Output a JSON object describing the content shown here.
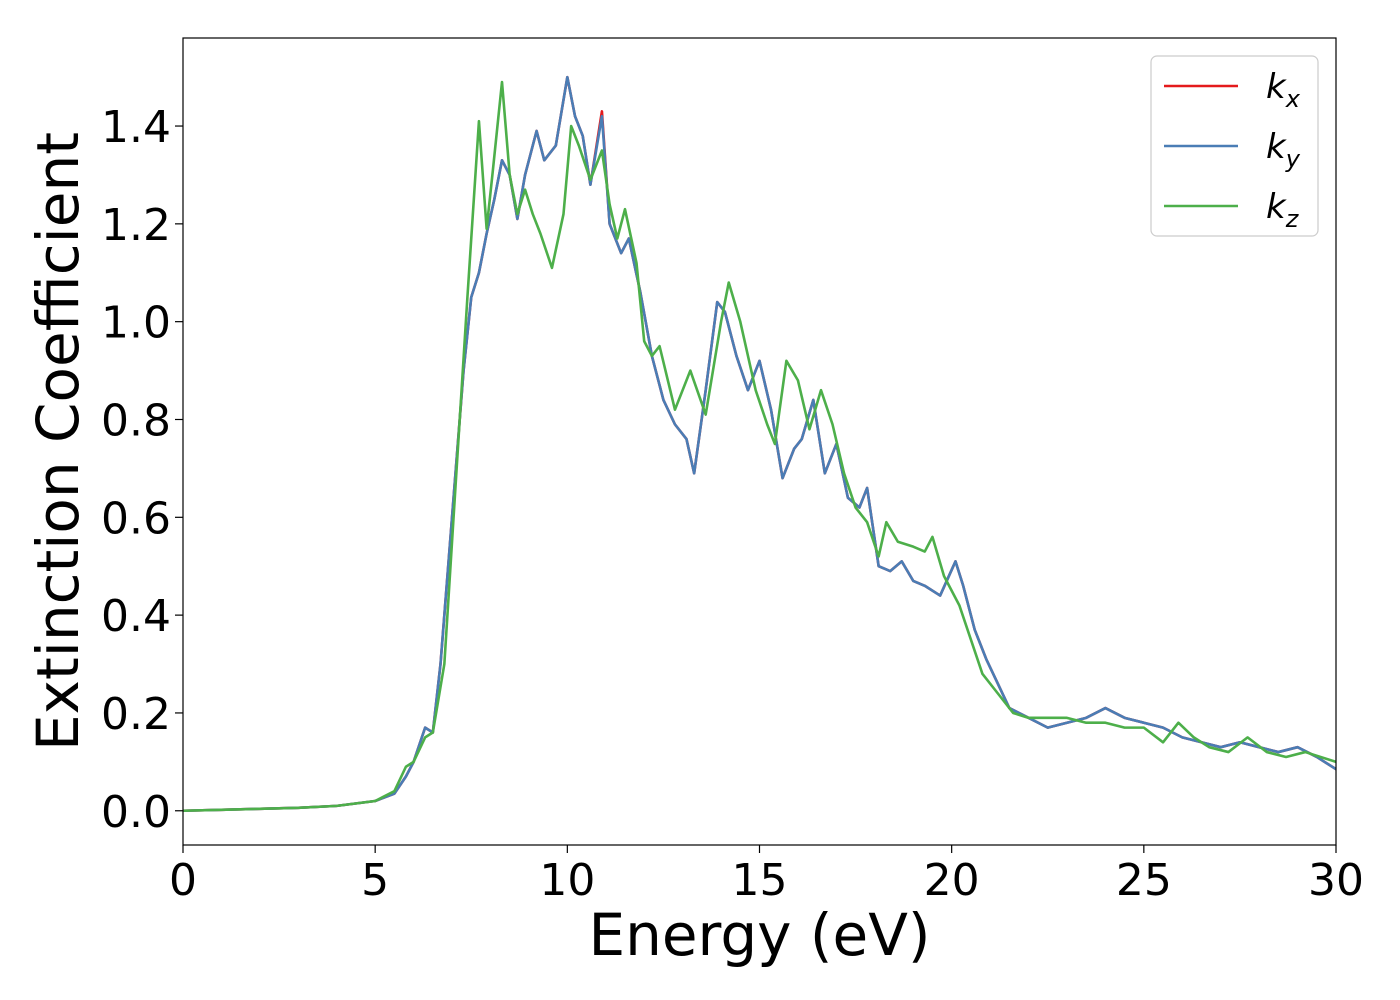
{
  "chart_data": {
    "type": "line",
    "xlabel": "Energy (eV)",
    "ylabel": "Extinction Coefficient",
    "xlim": [
      0,
      30
    ],
    "ylim": [
      -0.07,
      1.58
    ],
    "xticks": [
      0,
      5,
      10,
      15,
      20,
      25,
      30
    ],
    "xtick_labels": [
      "0",
      "5",
      "10",
      "15",
      "20",
      "25",
      "30"
    ],
    "yticks": [
      0.0,
      0.2,
      0.4,
      0.6,
      0.8,
      1.0,
      1.2,
      1.4
    ],
    "ytick_labels": [
      "0.0",
      "0.2",
      "0.4",
      "0.6",
      "0.8",
      "1.0",
      "1.2",
      "1.4"
    ],
    "grid": false,
    "legend_position": "top-right",
    "series": [
      {
        "name": "k_x",
        "label_main": "k",
        "label_sub": "x",
        "color": "#e41a1c",
        "points": [
          [
            0,
            0
          ],
          [
            1,
            0.002
          ],
          [
            2,
            0.004
          ],
          [
            3,
            0.006
          ],
          [
            4,
            0.01
          ],
          [
            5,
            0.02
          ],
          [
            5.5,
            0.035
          ],
          [
            5.8,
            0.07
          ],
          [
            6.0,
            0.1
          ],
          [
            6.3,
            0.17
          ],
          [
            6.5,
            0.16
          ],
          [
            6.7,
            0.3
          ],
          [
            7.0,
            0.6
          ],
          [
            7.3,
            0.9
          ],
          [
            7.5,
            1.05
          ],
          [
            7.7,
            1.1
          ],
          [
            7.9,
            1.18
          ],
          [
            8.1,
            1.25
          ],
          [
            8.3,
            1.33
          ],
          [
            8.5,
            1.3
          ],
          [
            8.7,
            1.21
          ],
          [
            8.9,
            1.3
          ],
          [
            9.2,
            1.39
          ],
          [
            9.4,
            1.33
          ],
          [
            9.7,
            1.36
          ],
          [
            10.0,
            1.5
          ],
          [
            10.2,
            1.42
          ],
          [
            10.4,
            1.38
          ],
          [
            10.6,
            1.28
          ],
          [
            10.9,
            1.43
          ],
          [
            11.1,
            1.2
          ],
          [
            11.4,
            1.14
          ],
          [
            11.6,
            1.17
          ],
          [
            11.9,
            1.06
          ],
          [
            12.2,
            0.93
          ],
          [
            12.5,
            0.84
          ],
          [
            12.8,
            0.79
          ],
          [
            13.1,
            0.76
          ],
          [
            13.3,
            0.69
          ],
          [
            13.6,
            0.86
          ],
          [
            13.9,
            1.04
          ],
          [
            14.1,
            1.02
          ],
          [
            14.4,
            0.93
          ],
          [
            14.7,
            0.86
          ],
          [
            15.0,
            0.92
          ],
          [
            15.3,
            0.82
          ],
          [
            15.6,
            0.68
          ],
          [
            15.9,
            0.74
          ],
          [
            16.1,
            0.76
          ],
          [
            16.4,
            0.84
          ],
          [
            16.7,
            0.69
          ],
          [
            17.0,
            0.75
          ],
          [
            17.3,
            0.64
          ],
          [
            17.6,
            0.62
          ],
          [
            17.8,
            0.66
          ],
          [
            18.1,
            0.5
          ],
          [
            18.4,
            0.49
          ],
          [
            18.7,
            0.51
          ],
          [
            19.0,
            0.47
          ],
          [
            19.3,
            0.46
          ],
          [
            19.7,
            0.44
          ],
          [
            20.1,
            0.51
          ],
          [
            20.3,
            0.46
          ],
          [
            20.6,
            0.37
          ],
          [
            20.9,
            0.31
          ],
          [
            21.2,
            0.26
          ],
          [
            21.5,
            0.21
          ],
          [
            22.0,
            0.19
          ],
          [
            22.5,
            0.17
          ],
          [
            23.0,
            0.18
          ],
          [
            23.5,
            0.19
          ],
          [
            24.0,
            0.21
          ],
          [
            24.5,
            0.19
          ],
          [
            25.0,
            0.18
          ],
          [
            25.5,
            0.17
          ],
          [
            26.0,
            0.15
          ],
          [
            26.5,
            0.14
          ],
          [
            27.0,
            0.13
          ],
          [
            27.5,
            0.14
          ],
          [
            28.0,
            0.13
          ],
          [
            28.5,
            0.12
          ],
          [
            29.0,
            0.13
          ],
          [
            29.5,
            0.11
          ],
          [
            30.0,
            0.085
          ]
        ]
      },
      {
        "name": "k_y",
        "label_main": "k",
        "label_sub": "y",
        "color": "#4a7db5",
        "points": [
          [
            0,
            0
          ],
          [
            1,
            0.002
          ],
          [
            2,
            0.004
          ],
          [
            3,
            0.006
          ],
          [
            4,
            0.01
          ],
          [
            5,
            0.02
          ],
          [
            5.5,
            0.035
          ],
          [
            5.8,
            0.07
          ],
          [
            6.0,
            0.1
          ],
          [
            6.3,
            0.17
          ],
          [
            6.5,
            0.16
          ],
          [
            6.7,
            0.3
          ],
          [
            7.0,
            0.6
          ],
          [
            7.3,
            0.9
          ],
          [
            7.5,
            1.05
          ],
          [
            7.7,
            1.1
          ],
          [
            7.9,
            1.18
          ],
          [
            8.1,
            1.25
          ],
          [
            8.3,
            1.33
          ],
          [
            8.5,
            1.3
          ],
          [
            8.7,
            1.21
          ],
          [
            8.9,
            1.3
          ],
          [
            9.2,
            1.39
          ],
          [
            9.4,
            1.33
          ],
          [
            9.7,
            1.36
          ],
          [
            10.0,
            1.5
          ],
          [
            10.2,
            1.42
          ],
          [
            10.4,
            1.38
          ],
          [
            10.6,
            1.28
          ],
          [
            10.9,
            1.42
          ],
          [
            11.1,
            1.2
          ],
          [
            11.4,
            1.14
          ],
          [
            11.6,
            1.17
          ],
          [
            11.9,
            1.06
          ],
          [
            12.2,
            0.93
          ],
          [
            12.5,
            0.84
          ],
          [
            12.8,
            0.79
          ],
          [
            13.1,
            0.76
          ],
          [
            13.3,
            0.69
          ],
          [
            13.6,
            0.86
          ],
          [
            13.9,
            1.04
          ],
          [
            14.1,
            1.02
          ],
          [
            14.4,
            0.93
          ],
          [
            14.7,
            0.86
          ],
          [
            15.0,
            0.92
          ],
          [
            15.3,
            0.82
          ],
          [
            15.6,
            0.68
          ],
          [
            15.9,
            0.74
          ],
          [
            16.1,
            0.76
          ],
          [
            16.4,
            0.84
          ],
          [
            16.7,
            0.69
          ],
          [
            17.0,
            0.75
          ],
          [
            17.3,
            0.64
          ],
          [
            17.6,
            0.62
          ],
          [
            17.8,
            0.66
          ],
          [
            18.1,
            0.5
          ],
          [
            18.4,
            0.49
          ],
          [
            18.7,
            0.51
          ],
          [
            19.0,
            0.47
          ],
          [
            19.3,
            0.46
          ],
          [
            19.7,
            0.44
          ],
          [
            20.1,
            0.51
          ],
          [
            20.3,
            0.46
          ],
          [
            20.6,
            0.37
          ],
          [
            20.9,
            0.31
          ],
          [
            21.2,
            0.26
          ],
          [
            21.5,
            0.21
          ],
          [
            22.0,
            0.19
          ],
          [
            22.5,
            0.17
          ],
          [
            23.0,
            0.18
          ],
          [
            23.5,
            0.19
          ],
          [
            24.0,
            0.21
          ],
          [
            24.5,
            0.19
          ],
          [
            25.0,
            0.18
          ],
          [
            25.5,
            0.17
          ],
          [
            26.0,
            0.15
          ],
          [
            26.5,
            0.14
          ],
          [
            27.0,
            0.13
          ],
          [
            27.5,
            0.14
          ],
          [
            28.0,
            0.13
          ],
          [
            28.5,
            0.12
          ],
          [
            29.0,
            0.13
          ],
          [
            29.5,
            0.11
          ],
          [
            30.0,
            0.085
          ]
        ]
      },
      {
        "name": "k_z",
        "label_main": "k",
        "label_sub": "z",
        "color": "#4daf4a",
        "points": [
          [
            0,
            0
          ],
          [
            1,
            0.002
          ],
          [
            2,
            0.004
          ],
          [
            3,
            0.006
          ],
          [
            4,
            0.01
          ],
          [
            5,
            0.02
          ],
          [
            5.5,
            0.04
          ],
          [
            5.8,
            0.09
          ],
          [
            6.0,
            0.1
          ],
          [
            6.3,
            0.15
          ],
          [
            6.5,
            0.16
          ],
          [
            6.8,
            0.3
          ],
          [
            7.0,
            0.55
          ],
          [
            7.2,
            0.8
          ],
          [
            7.4,
            1.05
          ],
          [
            7.7,
            1.41
          ],
          [
            7.9,
            1.19
          ],
          [
            8.05,
            1.3
          ],
          [
            8.3,
            1.49
          ],
          [
            8.5,
            1.3
          ],
          [
            8.7,
            1.22
          ],
          [
            8.9,
            1.27
          ],
          [
            9.1,
            1.22
          ],
          [
            9.3,
            1.18
          ],
          [
            9.6,
            1.11
          ],
          [
            9.9,
            1.22
          ],
          [
            10.1,
            1.4
          ],
          [
            10.3,
            1.36
          ],
          [
            10.6,
            1.29
          ],
          [
            10.9,
            1.35
          ],
          [
            11.1,
            1.24
          ],
          [
            11.3,
            1.17
          ],
          [
            11.5,
            1.23
          ],
          [
            11.8,
            1.12
          ],
          [
            12.0,
            0.96
          ],
          [
            12.2,
            0.93
          ],
          [
            12.4,
            0.95
          ],
          [
            12.8,
            0.82
          ],
          [
            13.2,
            0.9
          ],
          [
            13.6,
            0.81
          ],
          [
            14.0,
            1.0
          ],
          [
            14.2,
            1.08
          ],
          [
            14.5,
            1.0
          ],
          [
            14.9,
            0.86
          ],
          [
            15.2,
            0.79
          ],
          [
            15.4,
            0.75
          ],
          [
            15.7,
            0.92
          ],
          [
            16.0,
            0.88
          ],
          [
            16.3,
            0.78
          ],
          [
            16.6,
            0.86
          ],
          [
            16.9,
            0.79
          ],
          [
            17.2,
            0.69
          ],
          [
            17.5,
            0.62
          ],
          [
            17.8,
            0.59
          ],
          [
            18.1,
            0.52
          ],
          [
            18.3,
            0.59
          ],
          [
            18.6,
            0.55
          ],
          [
            19.0,
            0.54
          ],
          [
            19.3,
            0.53
          ],
          [
            19.5,
            0.56
          ],
          [
            19.8,
            0.48
          ],
          [
            20.2,
            0.42
          ],
          [
            20.5,
            0.35
          ],
          [
            20.8,
            0.28
          ],
          [
            21.2,
            0.24
          ],
          [
            21.6,
            0.2
          ],
          [
            22.0,
            0.19
          ],
          [
            22.5,
            0.19
          ],
          [
            23.0,
            0.19
          ],
          [
            23.5,
            0.18
          ],
          [
            24.0,
            0.18
          ],
          [
            24.5,
            0.17
          ],
          [
            25.0,
            0.17
          ],
          [
            25.5,
            0.14
          ],
          [
            25.9,
            0.18
          ],
          [
            26.3,
            0.15
          ],
          [
            26.7,
            0.13
          ],
          [
            27.2,
            0.12
          ],
          [
            27.7,
            0.15
          ],
          [
            28.2,
            0.12
          ],
          [
            28.7,
            0.11
          ],
          [
            29.2,
            0.12
          ],
          [
            29.6,
            0.11
          ],
          [
            30.0,
            0.1
          ]
        ]
      }
    ]
  }
}
